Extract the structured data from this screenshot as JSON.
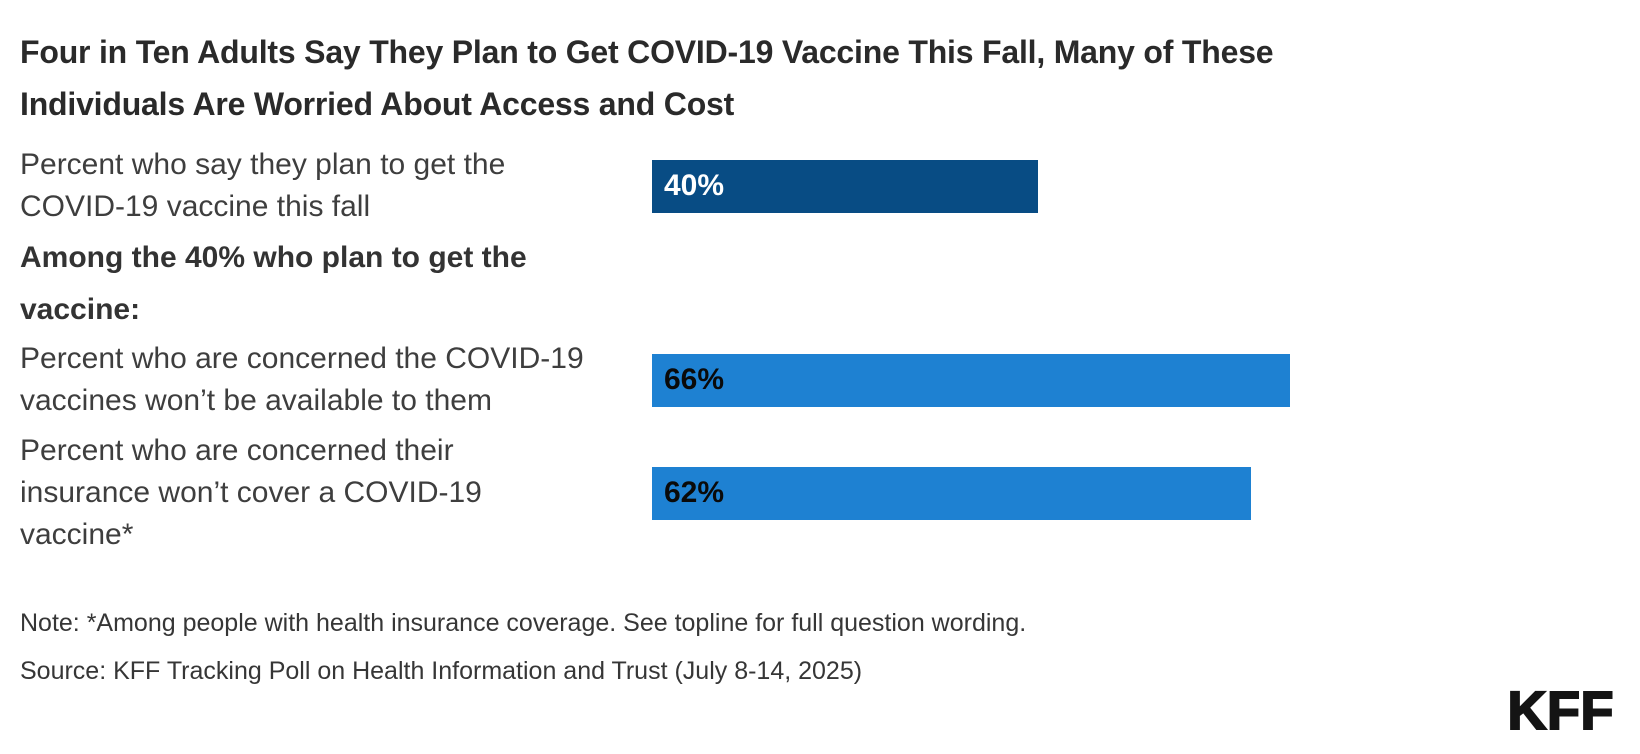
{
  "header": {
    "title": "Four in Ten Adults Say They Plan to Get COVID-19 Vaccine This Fall, Many of These Individuals Are Worried About Access and Cost",
    "title_lines": [
      "Four in Ten Adults Say They Plan to Get COVID-19 Vaccine This Fall, Many of These",
      "Individuals Are Worried About Access and Cost"
    ]
  },
  "chart_data": {
    "type": "bar",
    "orientation": "horizontal",
    "unit": "percent",
    "xlim": [
      0,
      100
    ],
    "grid": false,
    "legend": "none",
    "title": "Four in Ten Adults Say They Plan to Get COVID-19 Vaccine This Fall, Many of These Individuals Are Worried About Access and Cost",
    "section_heading": "Among the 40% who plan to get the vaccine:",
    "section_heading_lines": [
      "Among the 40% who plan to get the",
      "vaccine:"
    ],
    "categories": [
      "Percent who say they plan to get the COVID-19 vaccine this fall",
      "Percent who are concerned the COVID-19 vaccines won’t be available to them",
      "Percent who are concerned their insurance won’t cover a COVID-19 vaccine*"
    ],
    "values": [
      40,
      66,
      62
    ],
    "rows": [
      {
        "label": "Percent who say they plan to get the COVID-19 vaccine this fall",
        "label_lines": [
          "Percent who say they plan to get the",
          "COVID-19 vaccine this fall"
        ],
        "value": 40,
        "value_label": "40%",
        "bar_color": "#084C84",
        "value_text_color": "#FFFFFF"
      },
      {
        "label": "Percent who are concerned the COVID-19 vaccines won’t be available to them",
        "label_lines": [
          "Percent who are concerned the COVID-19",
          "vaccines won’t be available to them"
        ],
        "value": 66,
        "value_label": "66%",
        "bar_color": "#1E81D2",
        "value_text_color": "#0A0A0A"
      },
      {
        "label": "Percent who are concerned their insurance won’t cover a COVID-19 vaccine*",
        "label_lines": [
          "Percent who are concerned their",
          "insurance won’t cover a COVID-19",
          "vaccine*"
        ],
        "value": 62,
        "value_label": "62%",
        "bar_color": "#1E81D2",
        "value_text_color": "#0A0A0A"
      }
    ]
  },
  "footer": {
    "note": "Note: *Among people with health insurance coverage. See topline for full question wording.",
    "source": "Source: KFF Tracking Poll on Health Information and Trust (July 8-14, 2025)",
    "logo_text": "KFF"
  },
  "colors": {
    "bar_dark_navy": "#084C84",
    "bar_medium_blue": "#1E81D2",
    "title_text": "#2A2A2A",
    "label_text": "#3E3E3E",
    "footer_text": "#363636",
    "background": "#FFFFFF",
    "logo_text": "#141414"
  }
}
